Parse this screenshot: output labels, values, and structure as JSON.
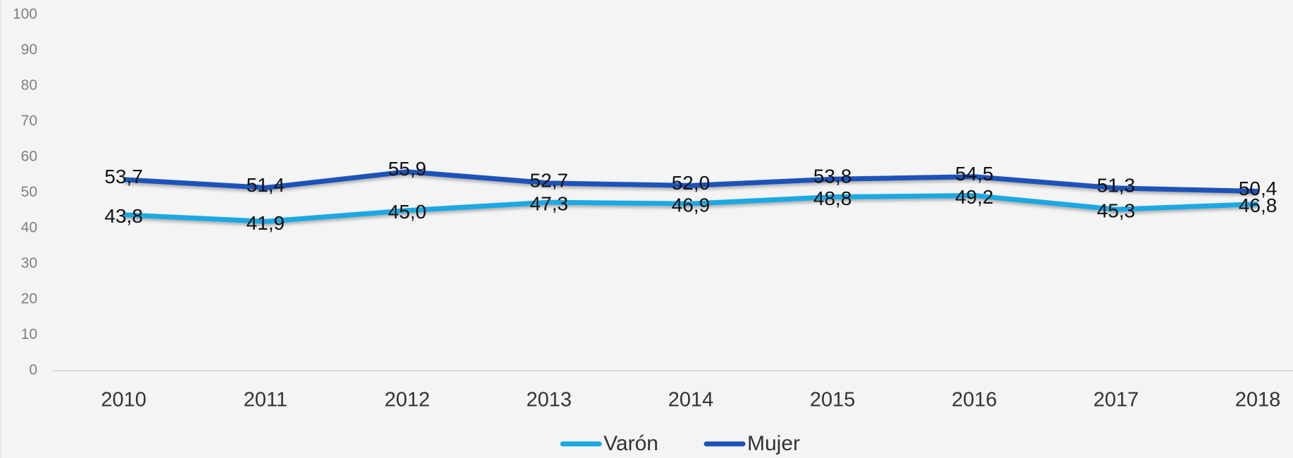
{
  "chart_data": {
    "type": "line",
    "categories": [
      "2010",
      "2011",
      "2012",
      "2013",
      "2014",
      "2015",
      "2016",
      "2017",
      "2018"
    ],
    "series": [
      {
        "name": "Varón",
        "color": "#1ba8e2",
        "values": [
          43.8,
          41.9,
          45.0,
          47.3,
          46.9,
          48.8,
          49.2,
          45.3,
          46.8
        ],
        "value_labels": [
          "43,8",
          "41,9",
          "45,0",
          "47,3",
          "46,9",
          "48,8",
          "49,2",
          "45,3",
          "46,8"
        ]
      },
      {
        "name": "Mujer",
        "color": "#1f52b8",
        "values": [
          53.7,
          51.4,
          55.9,
          52.7,
          52.0,
          53.8,
          54.5,
          51.3,
          50.4
        ],
        "value_labels": [
          "53,7",
          "51,4",
          "55,9",
          "52,7",
          "52,0",
          "53,8",
          "54,5",
          "51,3",
          "50,4"
        ]
      }
    ],
    "ylim": [
      0,
      100
    ],
    "yticks": [
      0,
      10,
      20,
      30,
      40,
      50,
      60,
      70,
      80,
      90,
      100
    ],
    "grid": false,
    "legend": "bottom"
  }
}
